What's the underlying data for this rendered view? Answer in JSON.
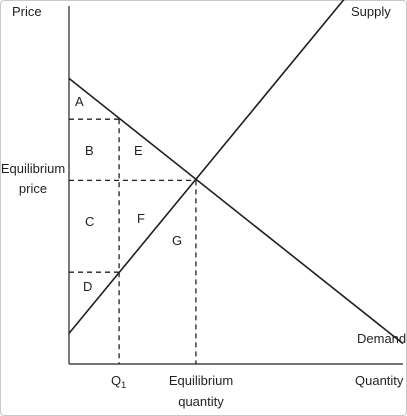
{
  "chart_data": {
    "type": "line",
    "ylabel": "Price",
    "xlabel": "Quantity",
    "ylim": [
      0,
      10
    ],
    "xlim": [
      0,
      10
    ],
    "series": [
      {
        "name": "Supply",
        "x": [
          0,
          8.8
        ],
        "y": [
          0.9,
          11.4
        ]
      },
      {
        "name": "Demand",
        "x": [
          0,
          10
        ],
        "y": [
          8.4,
          0.6
        ]
      }
    ],
    "equilibrium": {
      "x": 3.8,
      "y": 5.4
    },
    "equilibrium_price_label": [
      "Equilibrium",
      "price"
    ],
    "equilibrium_quantity_label": [
      "Equilibrium",
      "quantity"
    ],
    "q1": {
      "label": "Q",
      "subscript": "1",
      "x": 1.5
    },
    "upper_price_at_q1": 7.2,
    "lower_price_at_q1": 2.7,
    "regions": [
      "A",
      "B",
      "C",
      "D",
      "E",
      "F",
      "G"
    ]
  }
}
